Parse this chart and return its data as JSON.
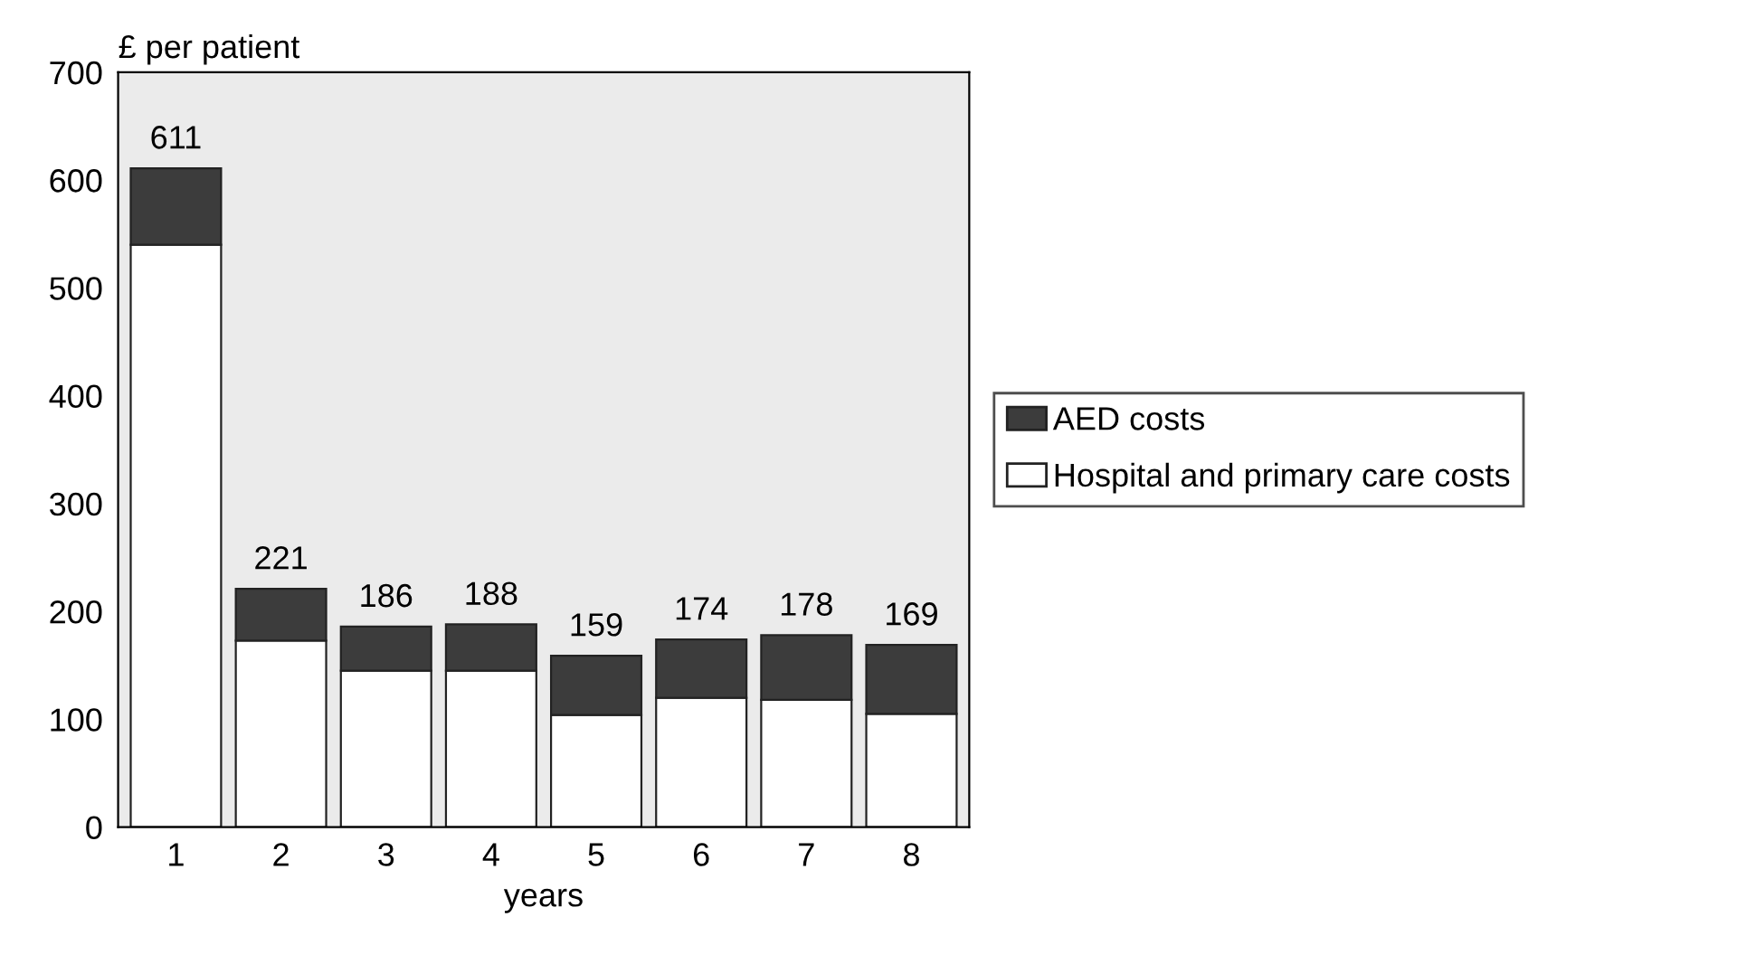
{
  "chart_data": {
    "type": "bar",
    "stacked": true,
    "xlabel": "years",
    "ylabel": "£ per patient",
    "categories": [
      "1",
      "2",
      "3",
      "4",
      "5",
      "6",
      "7",
      "8"
    ],
    "series": [
      {
        "name": "Hospital and primary care costs",
        "color": "#ffffff",
        "values": [
          540,
          173,
          145,
          145,
          104,
          120,
          118,
          105
        ]
      },
      {
        "name": "AED costs",
        "color": "#3c3c3c",
        "values": [
          71,
          48,
          41,
          43,
          55,
          54,
          60,
          64
        ]
      }
    ],
    "totals": [
      "611",
      "221",
      "186",
      "188",
      "159",
      "174",
      "178",
      "169"
    ],
    "ylim": [
      0,
      700
    ],
    "yticks": [
      0,
      100,
      200,
      300,
      400,
      500,
      600,
      700
    ],
    "grid": false,
    "legend": "right"
  }
}
